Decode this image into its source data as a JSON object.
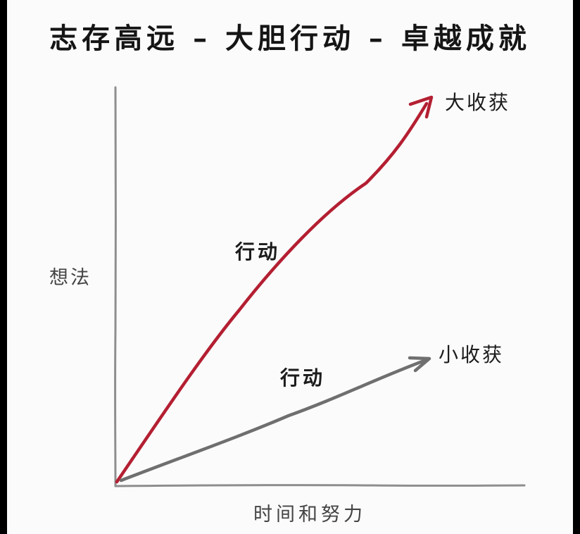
{
  "title": "志存高远 – 大胆行动 – 卓越成就",
  "axes": {
    "y_label": "想法",
    "x_label": "时间和努力"
  },
  "arrows": [
    {
      "name": "high",
      "label": "行动",
      "result": "大收获",
      "color": "#b41f32"
    },
    {
      "name": "low",
      "label": "行动",
      "result": "小收获",
      "color": "#6f6f6f"
    }
  ],
  "colors": {
    "background": "#fbfbfb",
    "axis": "#8e8e8e",
    "text": "#1c1c1c"
  }
}
